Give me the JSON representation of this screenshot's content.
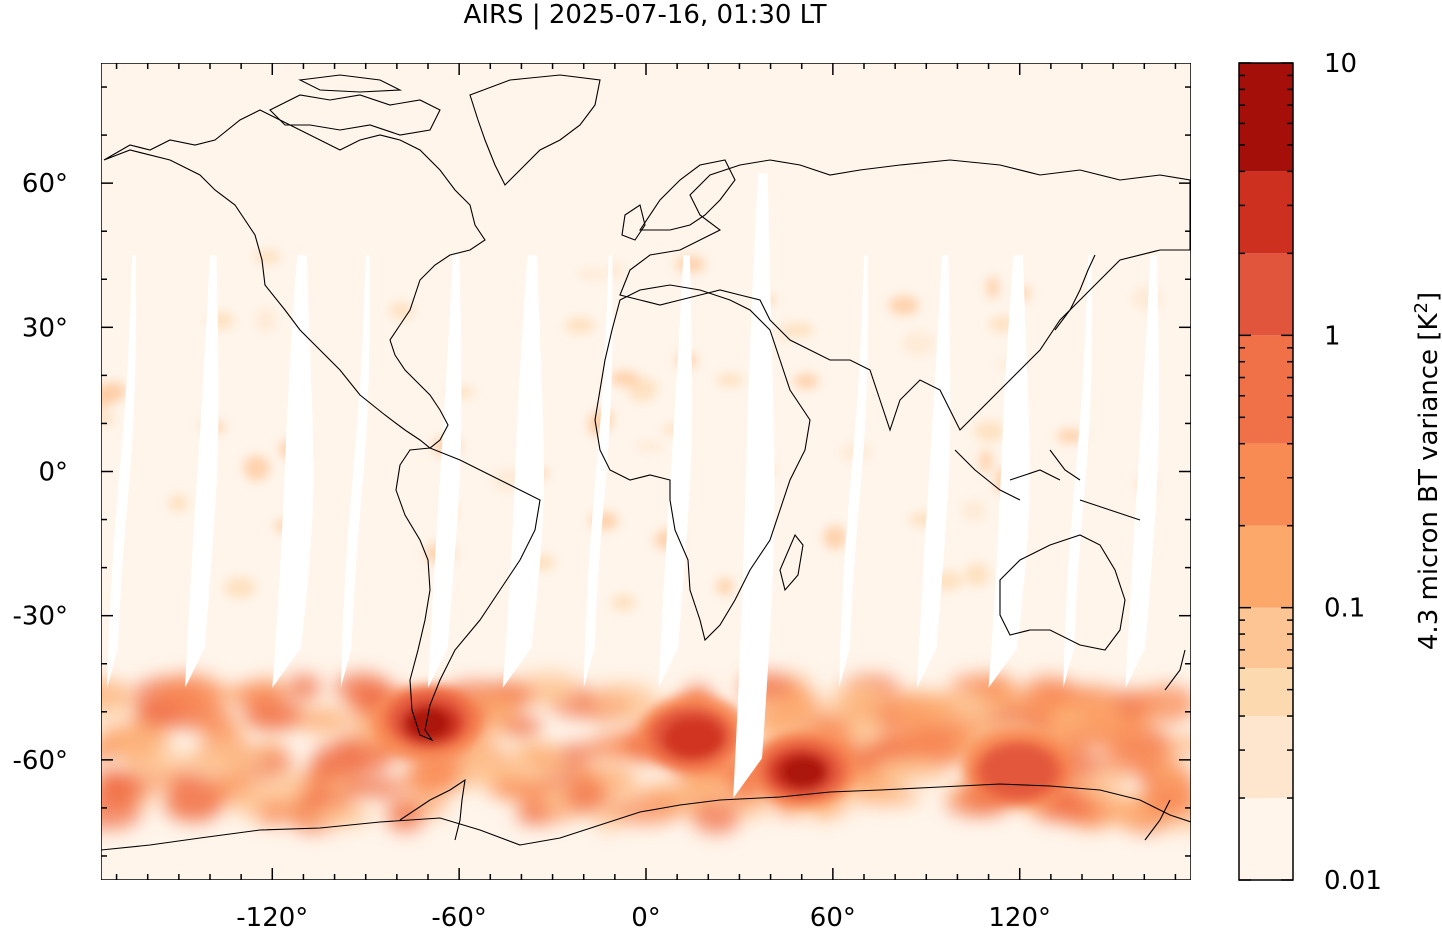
{
  "title": "AIRS | 2025-07-16, 01:30 LT",
  "chart_data": {
    "type": "heatmap",
    "title": "AIRS | 2025-07-16, 01:30 LT",
    "xlabel": "",
    "ylabel": "",
    "projection": "plate carree (lon/lat)",
    "xlim": [
      -175,
      175
    ],
    "ylim": [
      -85,
      85
    ],
    "x_ticks": [
      -120,
      -60,
      0,
      60,
      120
    ],
    "x_tick_labels": [
      "-120°",
      "-60°",
      "0°",
      "60°",
      "120°"
    ],
    "y_ticks": [
      60,
      30,
      0,
      -30,
      -60
    ],
    "y_tick_labels": [
      "60°",
      "30°",
      "0°",
      "-30°",
      "-60°"
    ],
    "colorbar": {
      "label": "4.3 micron BT variance [K",
      "label_superscript": "2",
      "label_suffix": "]",
      "scale": "log",
      "range": [
        0.01,
        10
      ],
      "tick_labels": [
        "10",
        "1",
        "0.1",
        "0.01"
      ],
      "tick_values": [
        10,
        1,
        0.1,
        0.01
      ],
      "levels": [
        0.01,
        0.02,
        0.04,
        0.06,
        0.1,
        0.2,
        0.4,
        1,
        2,
        4,
        10
      ],
      "colors": [
        "#fff5eb",
        "#fee6ce",
        "#fdd9b0",
        "#fdc594",
        "#fca86b",
        "#f88a54",
        "#f07048",
        "#e2553d",
        "#ce3020",
        "#a50f0a"
      ]
    },
    "features": [
      {
        "name": "Southern Ocean wave activity band",
        "lat_range": [
          -72,
          -45
        ],
        "level": 0.3
      },
      {
        "name": "Southern Andes / Patagonia hotspot",
        "lon": -70,
        "lat": -52,
        "level": 6
      },
      {
        "name": "South Indian Ocean hotspot",
        "lon": 50,
        "lat": -62,
        "level": 4
      },
      {
        "name": "South Atlantic hotspot",
        "lon": 15,
        "lat": -55,
        "level": 2
      },
      {
        "name": "South of Australia hotspot",
        "lon": 120,
        "lat": -62,
        "level": 1.5
      }
    ],
    "data_gaps": "white diagonal satellite swath gaps",
    "coastlines": true,
    "grid": false
  }
}
